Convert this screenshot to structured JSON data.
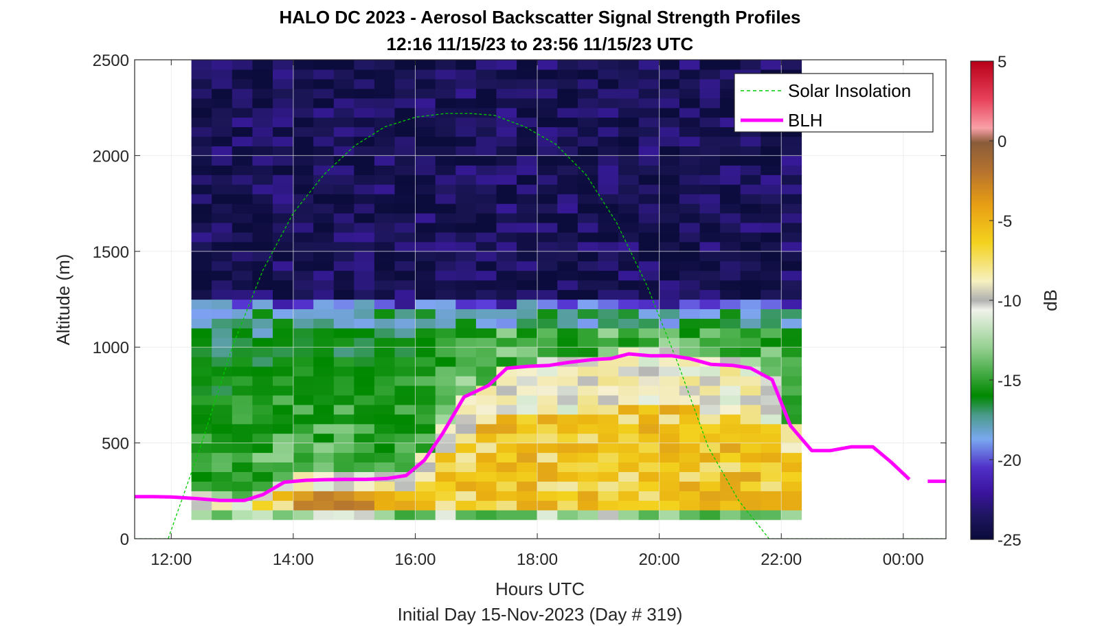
{
  "chart_data": {
    "type": "heatmap",
    "title": "HALO DC 2023 - Aerosol Backscatter Signal Strength Profiles",
    "subtitle": "12:16 11/15/23 to 23:56 11/15/23  UTC",
    "xlabel": "Hours UTC",
    "footer": "Initial Day 15-Nov-2023 (Day # 319)",
    "ylabel": "Altitude (m)",
    "colorbar_label": "dB",
    "xlim": [
      11.4,
      24.7
    ],
    "ylim": [
      0,
      2500
    ],
    "clim": [
      -25,
      5
    ],
    "x_ticks": [
      {
        "value": 12,
        "label": "12:00"
      },
      {
        "value": 14,
        "label": "14:00"
      },
      {
        "value": 16,
        "label": "16:00"
      },
      {
        "value": 18,
        "label": "18:00"
      },
      {
        "value": 20,
        "label": "20:00"
      },
      {
        "value": 22,
        "label": "22:00"
      },
      {
        "value": 24,
        "label": "00:00"
      }
    ],
    "y_ticks": [
      {
        "value": 0,
        "label": "0"
      },
      {
        "value": 500,
        "label": "500"
      },
      {
        "value": 1000,
        "label": "1000"
      },
      {
        "value": 1500,
        "label": "1500"
      },
      {
        "value": 2000,
        "label": "2000"
      },
      {
        "value": 2500,
        "label": "2500"
      }
    ],
    "colorbar_ticks": [
      {
        "value": 5,
        "label": "5"
      },
      {
        "value": 0,
        "label": "0"
      },
      {
        "value": -5,
        "label": "-5"
      },
      {
        "value": -10,
        "label": "-10"
      },
      {
        "value": -15,
        "label": "-15"
      },
      {
        "value": -20,
        "label": "-20"
      },
      {
        "value": -25,
        "label": "-25"
      }
    ],
    "grid": true,
    "legend_position": "top-right",
    "heatmap": {
      "x_start": 12.33,
      "x_step": 0.3333,
      "y_altitudes": [
        105,
        155,
        205,
        255,
        305,
        355,
        405,
        455,
        505,
        555,
        605,
        655,
        705,
        755,
        805,
        855,
        905,
        955,
        1005,
        1055,
        1105,
        1155,
        1205,
        1255,
        1305,
        1355,
        1405,
        1455,
        1505,
        1555,
        1605,
        1655,
        1705,
        1755,
        1805,
        1855,
        1905,
        1955,
        2005,
        2055,
        2105,
        2155,
        2205,
        2255,
        2305,
        2355,
        2405,
        2455,
        2500
      ],
      "upper_value_db": -23.8,
      "cloud_top_m": 1200
    },
    "series": [
      {
        "name": "Solar Insolation",
        "color": "#00cc00",
        "style": "dashed",
        "x": [
          11.4,
          11.95,
          12.5,
          13.0,
          13.5,
          14.0,
          14.5,
          15.0,
          15.5,
          16.0,
          16.5,
          16.9,
          17.3,
          17.8,
          18.3,
          18.8,
          19.3,
          19.8,
          20.3,
          20.8,
          21.3,
          21.8,
          21.85,
          24.7
        ],
        "y": [
          0,
          0,
          500,
          1000,
          1400,
          1700,
          1900,
          2050,
          2150,
          2200,
          2220,
          2220,
          2210,
          2150,
          2060,
          1900,
          1650,
          1320,
          920,
          480,
          200,
          0,
          0,
          0
        ]
      },
      {
        "name": "BLH",
        "color": "#ff00ff",
        "style": "solid",
        "x": [
          11.4,
          11.7,
          12.0,
          12.4,
          12.8,
          13.2,
          13.5,
          13.85,
          14.2,
          14.5,
          14.85,
          15.2,
          15.55,
          15.85,
          16.15,
          16.45,
          16.8,
          17.2,
          17.5,
          17.85,
          18.2,
          18.5,
          18.9,
          19.2,
          19.5,
          19.85,
          20.2,
          20.5,
          20.85,
          21.2,
          21.5,
          21.85,
          22.15,
          22.5,
          22.8,
          23.15,
          23.5,
          23.8,
          24.1
        ],
        "y": [
          220,
          220,
          218,
          210,
          200,
          200,
          230,
          295,
          305,
          308,
          310,
          310,
          315,
          330,
          410,
          550,
          740,
          800,
          890,
          900,
          905,
          920,
          935,
          940,
          965,
          955,
          955,
          940,
          910,
          905,
          890,
          830,
          590,
          460,
          460,
          480,
          480,
          400,
          310
        ]
      },
      {
        "name": "BLH-segment",
        "color": "#ff00ff",
        "style": "solid",
        "x": [
          24.4,
          24.7
        ],
        "y": [
          300,
          300
        ]
      }
    ],
    "legend": [
      "Solar Insolation",
      "BLH"
    ]
  }
}
